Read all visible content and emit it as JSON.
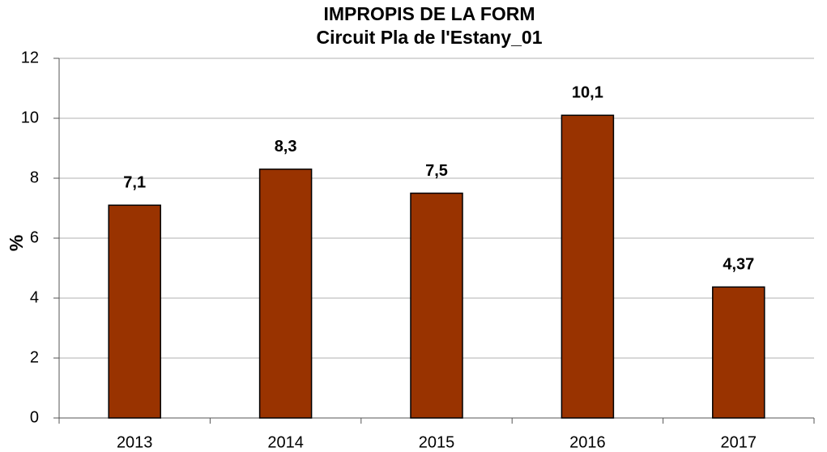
{
  "chart_data": {
    "type": "bar",
    "title": "IMPROPIS DE LA FORM",
    "subtitle": "Circuit Pla de l'Estany_01",
    "y_label": "%",
    "categories": [
      "2013",
      "2014",
      "2015",
      "2016",
      "2017"
    ],
    "values": [
      7.1,
      8.3,
      7.5,
      10.1,
      4.37
    ],
    "value_labels": [
      "7,1",
      "8,3",
      "7,5",
      "10,1",
      "4,37"
    ],
    "color": "#993300",
    "ylim": [
      0,
      12
    ],
    "yticks": [
      0,
      2,
      4,
      6,
      8,
      10,
      12
    ],
    "grid": true
  }
}
